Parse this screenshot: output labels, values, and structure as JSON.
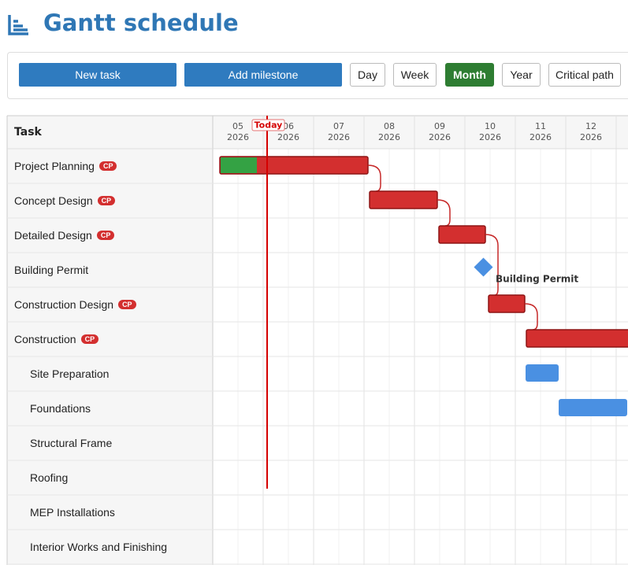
{
  "header": {
    "title": "Gantt schedule"
  },
  "toolbar": {
    "buttons": [
      "New task",
      "Add milestone",
      "Day",
      "Week",
      "Month",
      "Year",
      "Critical path"
    ]
  },
  "gantt": {
    "task_header": "Task",
    "months": [
      {
        "month": "05",
        "year": "2026"
      },
      {
        "month": "06",
        "year": "2026"
      },
      {
        "month": "07",
        "year": "2026"
      },
      {
        "month": "08",
        "year": "2026"
      },
      {
        "month": "09",
        "year": "2026"
      },
      {
        "month": "10",
        "year": "2026"
      },
      {
        "month": "11",
        "year": "2026"
      },
      {
        "month": "12",
        "year": "2026"
      }
    ],
    "today": "Today",
    "tasks": [
      {
        "name": "Project Planning",
        "badge": "CP"
      },
      {
        "name": "Concept Design",
        "badge": "CP"
      },
      {
        "name": "Detailed Design",
        "badge": "CP"
      },
      {
        "name": "Building Permit"
      },
      {
        "name": "Construction Design",
        "badge": "CP"
      },
      {
        "name": "Construction",
        "badge": "CP"
      },
      {
        "name": "Site Preparation"
      },
      {
        "name": "Foundations"
      },
      {
        "name": "Structural Frame"
      },
      {
        "name": "Roofing"
      },
      {
        "name": "MEP Installations"
      },
      {
        "name": "Interior Works and Finishing"
      }
    ],
    "milestone_label": "Building Permit"
  }
}
